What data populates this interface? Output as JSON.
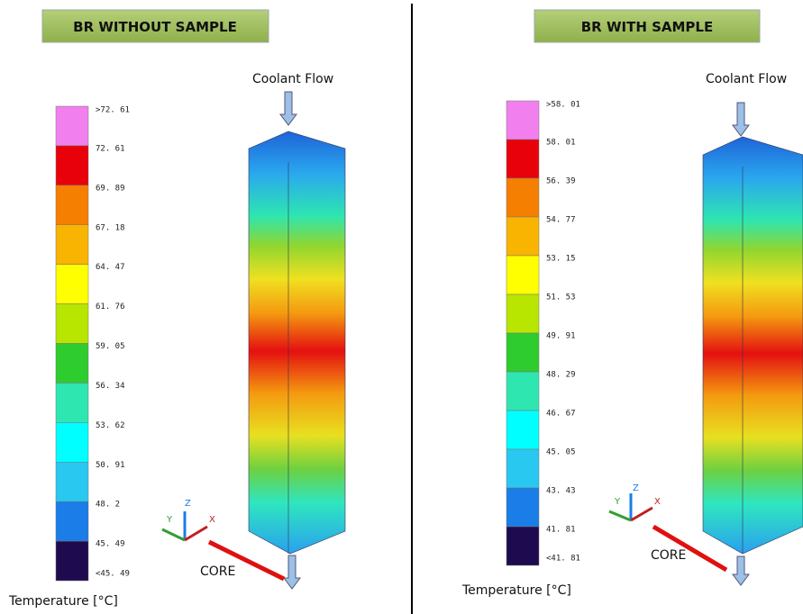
{
  "panels": [
    {
      "title": "BR WITHOUT SAMPLE",
      "coolant_label": "Coolant Flow",
      "core_label": "CORE",
      "legend_title": "Temperature [°C]",
      "legend_labels": [
        ">72. 61",
        "72. 61",
        "69. 89",
        "67. 18",
        "64. 47",
        "61. 76",
        "59. 05",
        "56. 34",
        "53. 62",
        "50. 91",
        "48. 2",
        "45. 49",
        "<45. 49"
      ]
    },
    {
      "title": "BR WITH SAMPLE",
      "coolant_label": "Coolant Flow",
      "core_label": "CORE",
      "legend_title": "Temperature [°C]",
      "legend_labels": [
        ">58. 01",
        "58. 01",
        "56. 39",
        "54. 77",
        "53. 15",
        "51. 53",
        "49. 91",
        "48. 29",
        "46. 67",
        "45. 05",
        "43. 43",
        "41. 81",
        "<41. 81"
      ]
    }
  ]
}
